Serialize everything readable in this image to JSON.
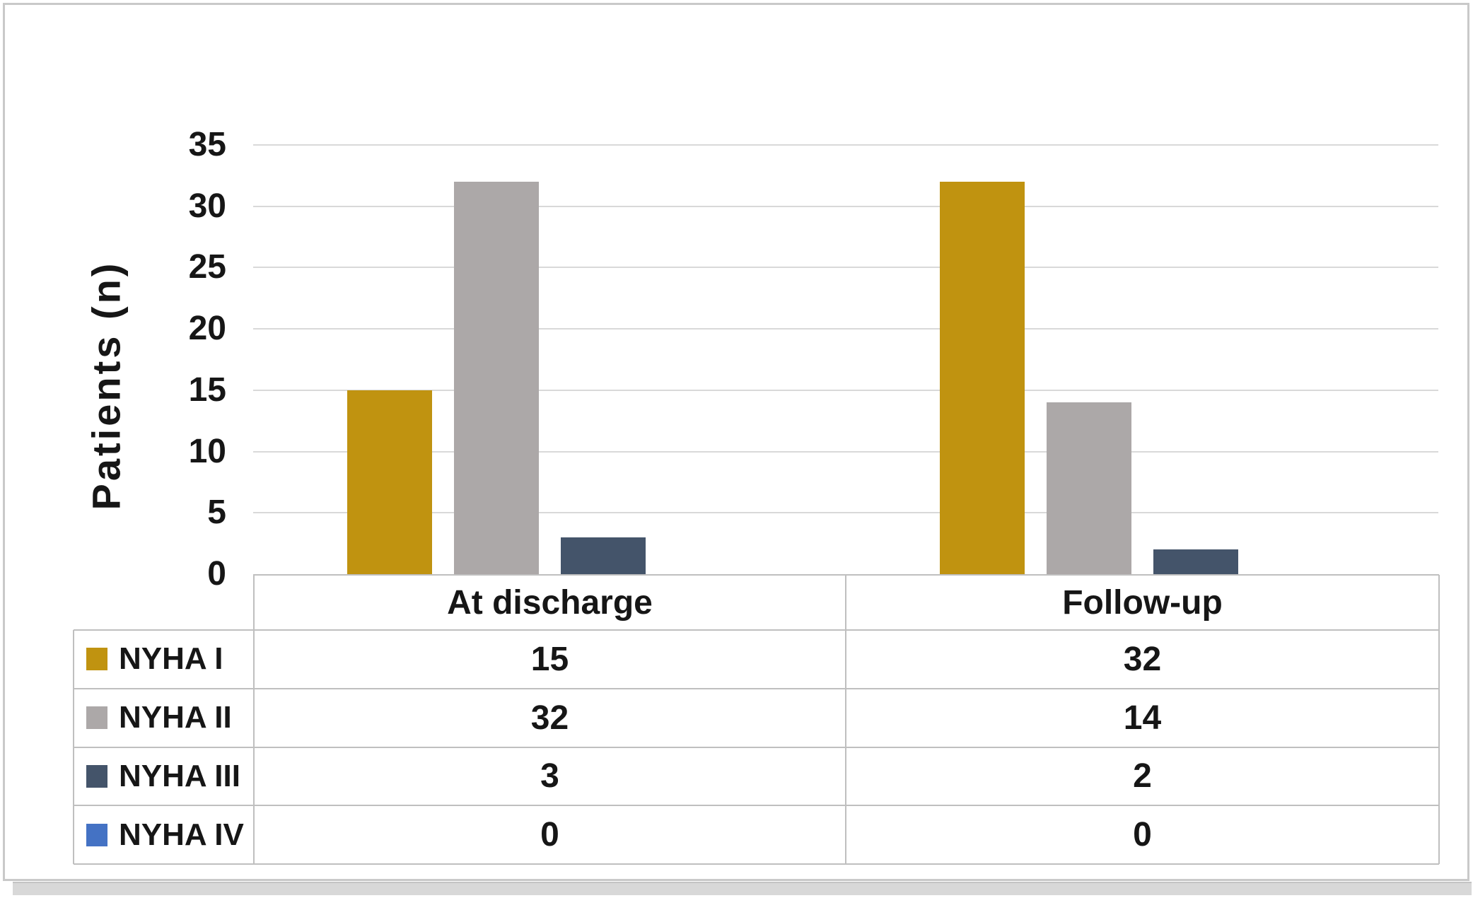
{
  "chart_data": {
    "type": "bar",
    "title": "",
    "xlabel": "",
    "ylabel": "Patients (n)",
    "categories": [
      "At discharge",
      "Follow-up"
    ],
    "series": [
      {
        "name": "NYHA I",
        "color": "#C09310",
        "values": [
          15,
          32
        ]
      },
      {
        "name": "NYHA II",
        "color": "#ACA8A8",
        "values": [
          32,
          14
        ]
      },
      {
        "name": "NYHA III",
        "color": "#44546A",
        "values": [
          3,
          2
        ]
      },
      {
        "name": "NYHA IV",
        "color": "#4472C4",
        "values": [
          0,
          0
        ]
      }
    ],
    "ylim": [
      0,
      35
    ],
    "yticks": [
      0,
      5,
      10,
      15,
      20,
      25,
      30,
      35
    ],
    "grid": true,
    "legend_position": "data-table-below-chart",
    "show_data_table": true,
    "colors": {
      "gridline": "#d9d9d9",
      "table_border": "#bfbfbf",
      "text": "#161616",
      "frame_border": "#c9c9c9"
    }
  }
}
